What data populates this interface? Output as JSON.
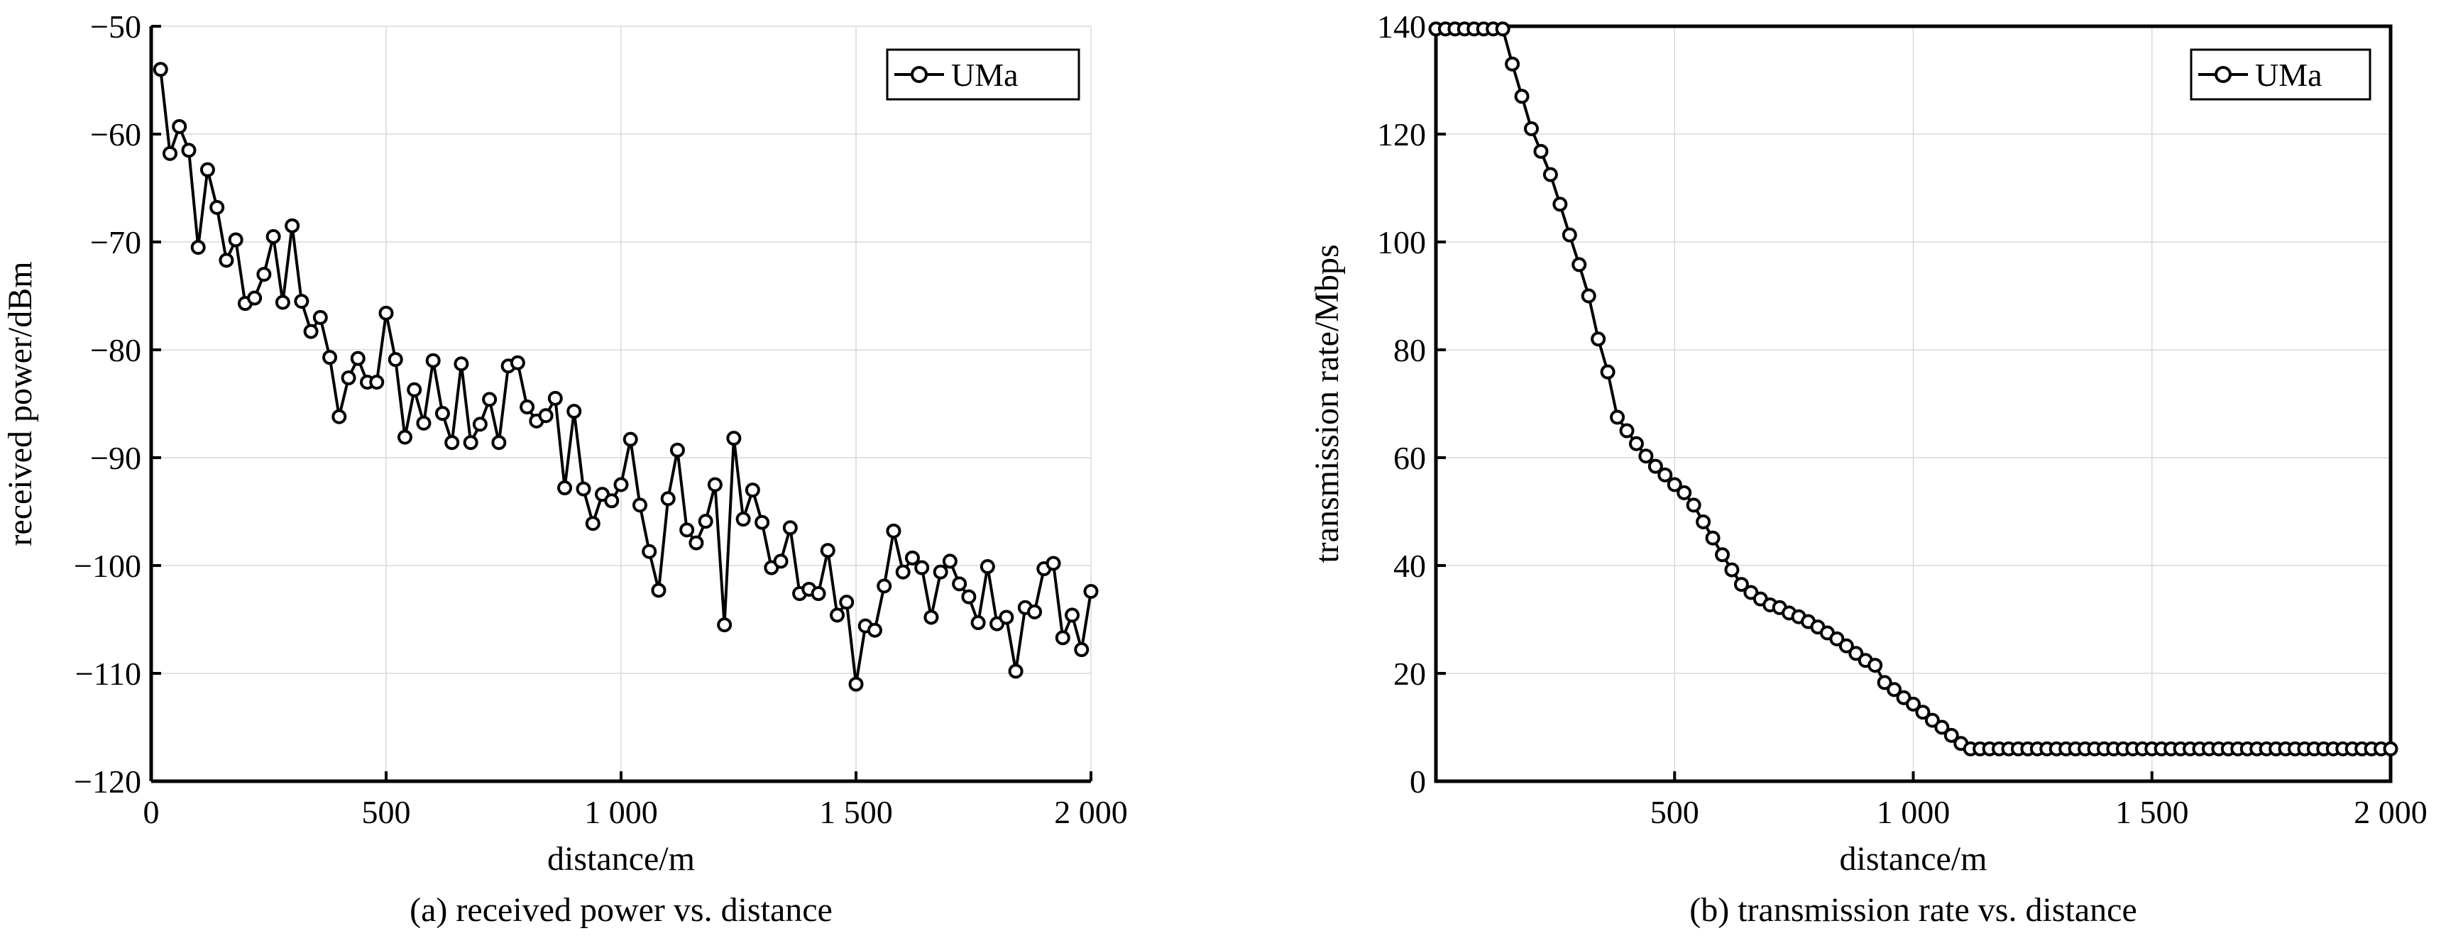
{
  "chart_data": [
    {
      "type": "line",
      "caption": "(a) received power vs. distance",
      "xlabel": "distance/m",
      "ylabel": "received power/dBm",
      "xlim": [
        0,
        2000
      ],
      "ylim": [
        -120,
        -50
      ],
      "xticks": [
        0,
        500,
        1000,
        1500,
        2000
      ],
      "xtick_labels": [
        "0",
        "500",
        "1 000",
        "1 500",
        "2 000"
      ],
      "yticks": [
        -120,
        -110,
        -100,
        -90,
        -80,
        -70,
        -60,
        -50
      ],
      "ytick_labels": [
        "−120",
        "−110",
        "−100",
        "−90",
        "−80",
        "−70",
        "−60",
        "−50"
      ],
      "grid": true,
      "legend_position": "top-right",
      "series": [
        {
          "name": "UMa",
          "x": [
            20,
            40,
            60,
            80,
            100,
            120,
            140,
            160,
            180,
            200,
            220,
            240,
            260,
            280,
            300,
            320,
            340,
            360,
            380,
            400,
            420,
            440,
            460,
            480,
            500,
            520,
            540,
            560,
            580,
            600,
            620,
            640,
            660,
            680,
            700,
            720,
            740,
            760,
            780,
            800,
            820,
            840,
            860,
            880,
            900,
            920,
            940,
            960,
            980,
            1000,
            1020,
            1040,
            1060,
            1080,
            1100,
            1120,
            1140,
            1160,
            1180,
            1200,
            1220,
            1240,
            1260,
            1280,
            1300,
            1320,
            1340,
            1360,
            1380,
            1400,
            1420,
            1440,
            1460,
            1480,
            1500,
            1520,
            1540,
            1560,
            1580,
            1600,
            1620,
            1640,
            1660,
            1680,
            1700,
            1720,
            1740,
            1760,
            1780,
            1800,
            1820,
            1840,
            1860,
            1880,
            1900,
            1920,
            1940,
            1960,
            1980,
            2000
          ],
          "y": [
            -54,
            -61.8,
            -59.3,
            -61.5,
            -70.5,
            -63.3,
            -66.8,
            -71.7,
            -69.8,
            -75.7,
            -75.2,
            -73.0,
            -69.5,
            -75.6,
            -68.5,
            -75.5,
            -78.3,
            -77.0,
            -80.7,
            -86.2,
            -82.6,
            -80.8,
            -83.0,
            -83.0,
            -76.6,
            -80.9,
            -88.1,
            -83.7,
            -86.8,
            -81.0,
            -85.9,
            -88.6,
            -81.3,
            -88.6,
            -86.9,
            -84.6,
            -88.6,
            -81.5,
            -81.2,
            -85.3,
            -86.6,
            -86.1,
            -84.5,
            -92.8,
            -85.7,
            -92.9,
            -96.1,
            -93.4,
            -94.0,
            -92.5,
            -88.3,
            -94.4,
            -98.7,
            -102.3,
            -93.8,
            -89.3,
            -96.7,
            -97.9,
            -95.9,
            -92.5,
            -105.5,
            -88.2,
            -95.7,
            -93.0,
            -96.0,
            -100.2,
            -99.6,
            -96.5,
            -102.6,
            -102.2,
            -102.6,
            -98.6,
            -104.6,
            -103.4,
            -111.0,
            -105.6,
            -106.0,
            -101.9,
            -96.8,
            -100.6,
            -99.3,
            -100.2,
            -104.8,
            -100.6,
            -99.6,
            -101.7,
            -102.9,
            -105.3,
            -100.1,
            -105.4,
            -104.8,
            -109.8,
            -103.9,
            -104.3,
            -100.3,
            -99.8,
            -106.7,
            -104.6,
            -107.8,
            -102.4
          ]
        }
      ]
    },
    {
      "type": "line",
      "caption": "(b) transmission rate vs. distance",
      "xlabel": "distance/m",
      "ylabel": "transmission rate/Mbps",
      "xlim": [
        0,
        2000
      ],
      "ylim": [
        0,
        140
      ],
      "xticks": [
        500,
        1000,
        1500,
        2000
      ],
      "xtick_labels": [
        "500",
        "1 000",
        "1 500",
        "2 000"
      ],
      "yticks": [
        0,
        20,
        40,
        60,
        80,
        100,
        120,
        140
      ],
      "ytick_labels": [
        "0",
        "20",
        "40",
        "60",
        "80",
        "100",
        "120",
        "140"
      ],
      "grid": true,
      "legend_position": "top-right",
      "series": [
        {
          "name": "UMa",
          "x": [
            0,
            20,
            40,
            60,
            80,
            100,
            120,
            140,
            160,
            180,
            200,
            220,
            240,
            260,
            280,
            300,
            320,
            340,
            360,
            380,
            400,
            420,
            440,
            460,
            480,
            500,
            520,
            540,
            560,
            580,
            600,
            620,
            640,
            660,
            680,
            700,
            720,
            740,
            760,
            780,
            800,
            820,
            840,
            860,
            880,
            900,
            920,
            940,
            960,
            980,
            1000,
            1020,
            1040,
            1060,
            1080,
            1100,
            1120,
            1140,
            1160,
            1180,
            1200,
            1220,
            1240,
            1260,
            1280,
            1300,
            1320,
            1340,
            1360,
            1380,
            1400,
            1420,
            1440,
            1460,
            1480,
            1500,
            1520,
            1540,
            1560,
            1580,
            1600,
            1620,
            1640,
            1660,
            1680,
            1700,
            1720,
            1740,
            1760,
            1780,
            1800,
            1820,
            1840,
            1860,
            1880,
            1900,
            1920,
            1940,
            1960,
            1980,
            2000
          ],
          "y": [
            139.5,
            139.5,
            139.5,
            139.5,
            139.5,
            139.5,
            139.5,
            139.5,
            133.0,
            127.0,
            121.0,
            116.8,
            112.5,
            107.0,
            101.3,
            95.8,
            90.0,
            82.0,
            75.9,
            67.5,
            65.0,
            62.6,
            60.3,
            58.4,
            56.8,
            55.0,
            53.5,
            51.2,
            48.1,
            45.1,
            42.0,
            39.2,
            36.5,
            35.0,
            33.8,
            32.7,
            32.2,
            31.2,
            30.5,
            29.6,
            28.6,
            27.5,
            26.4,
            25.1,
            23.7,
            22.4,
            21.5,
            18.3,
            17.0,
            15.5,
            14.3,
            12.8,
            11.3,
            10.0,
            8.5,
            7.0,
            6.0,
            6.0,
            6.0,
            6.0,
            6.0,
            6.0,
            6.0,
            6.0,
            6.0,
            6.0,
            6.0,
            6.0,
            6.0,
            6.0,
            6.0,
            6.0,
            6.0,
            6.0,
            6.0,
            6.0,
            6.0,
            6.0,
            6.0,
            6.0,
            6.0,
            6.0,
            6.0,
            6.0,
            6.0,
            6.0,
            6.0,
            6.0,
            6.0,
            6.0,
            6.0,
            6.0,
            6.0,
            6.0,
            6.0,
            6.0,
            6.0,
            6.0,
            6.0,
            6.0,
            6.0
          ]
        }
      ]
    }
  ]
}
